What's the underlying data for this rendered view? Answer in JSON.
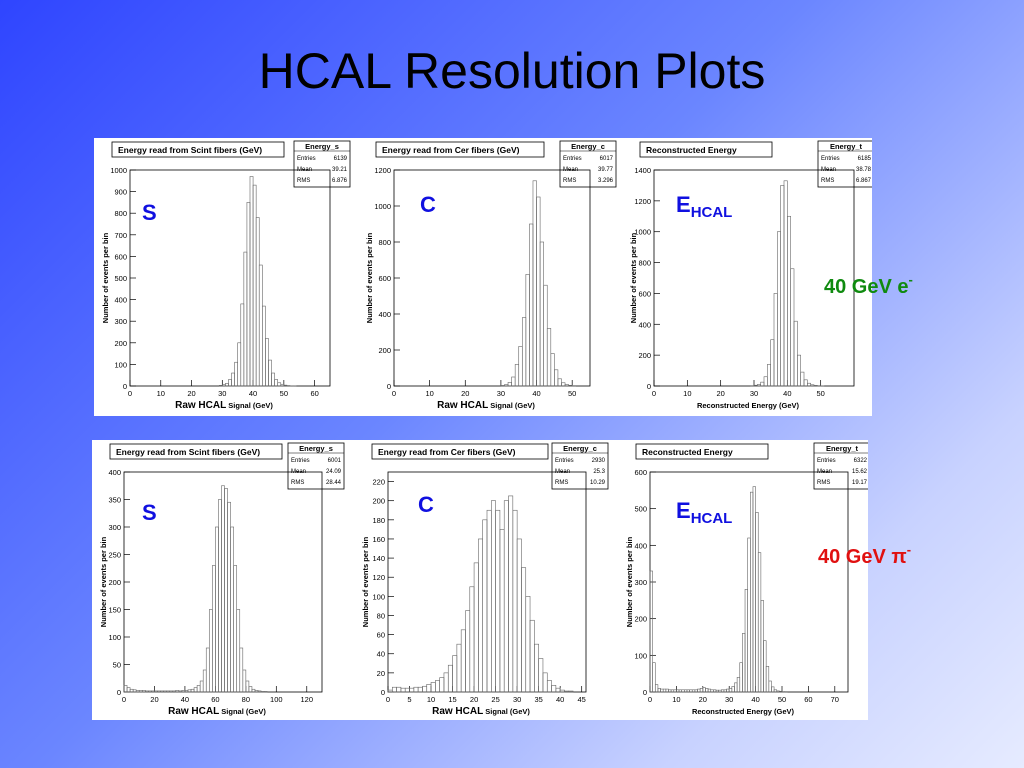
{
  "title": "HCAL Resolution Plots",
  "rows": [
    {
      "label": {
        "text": "40 GeV e",
        "sup": "-"
      },
      "label_color": "#0f8a0f"
    },
    {
      "label": {
        "text": "40 GeV π",
        "sup": "-"
      },
      "label_color": "#e01010"
    }
  ],
  "chart_data": [
    {
      "type": "bar",
      "title": "Energy read from Scint fibers (GeV)",
      "tag": {
        "main": "S",
        "sub": ""
      },
      "stats": {
        "name": "Energy_s",
        "rows": [
          [
            "Entries",
            "6139"
          ],
          [
            "Mean",
            "39.21"
          ],
          [
            "RMS",
            "6.876"
          ]
        ]
      },
      "xlabel": {
        "main": "Raw HCAL",
        "small": " Signal (GeV)"
      },
      "ylabel": "Number of events per bin",
      "xlim": [
        0,
        65
      ],
      "ylim": [
        0,
        1000
      ],
      "xticks": [
        0,
        10,
        20,
        30,
        40,
        50,
        60
      ],
      "yticks": [
        0,
        100,
        200,
        300,
        400,
        500,
        600,
        700,
        800,
        900,
        1000
      ],
      "bins": {
        "x0": 0,
        "width": 1,
        "values": [
          0,
          0,
          0,
          0,
          0,
          0,
          0,
          0,
          0,
          0,
          0,
          0,
          0,
          0,
          0,
          0,
          0,
          0,
          0,
          0,
          0,
          0,
          0,
          0,
          0,
          0,
          0,
          0,
          0,
          3,
          6,
          12,
          30,
          60,
          110,
          200,
          380,
          620,
          850,
          970,
          930,
          780,
          560,
          370,
          220,
          120,
          60,
          30,
          15,
          8,
          4,
          2,
          1,
          1,
          0,
          0,
          0,
          0,
          0,
          0,
          0,
          0,
          0,
          0,
          0
        ]
      }
    },
    {
      "type": "bar",
      "title": "Energy read from Cer fibers (GeV)",
      "tag": {
        "main": "C",
        "sub": ""
      },
      "stats": {
        "name": "Energy_c",
        "rows": [
          [
            "Entries",
            "6017"
          ],
          [
            "Mean",
            "39.77"
          ],
          [
            "RMS",
            "3.296"
          ]
        ]
      },
      "xlabel": {
        "main": "Raw HCAL",
        "small": " Signal (GeV)"
      },
      "ylabel": "Number of events per bin",
      "xlim": [
        0,
        55
      ],
      "ylim": [
        0,
        1200
      ],
      "xticks": [
        0,
        10,
        20,
        30,
        40,
        50
      ],
      "yticks": [
        0,
        200,
        400,
        600,
        800,
        1000,
        1200
      ],
      "bins": {
        "x0": 0,
        "width": 1,
        "values": [
          0,
          0,
          0,
          0,
          0,
          0,
          0,
          0,
          0,
          0,
          0,
          0,
          0,
          0,
          0,
          0,
          0,
          0,
          0,
          0,
          0,
          0,
          0,
          0,
          0,
          0,
          0,
          0,
          0,
          0,
          3,
          8,
          20,
          50,
          120,
          220,
          380,
          620,
          900,
          1140,
          1050,
          800,
          560,
          320,
          180,
          90,
          40,
          18,
          8,
          4,
          2,
          0,
          0,
          0,
          0
        ]
      }
    },
    {
      "type": "bar",
      "title": "Reconstructed Energy",
      "tag": {
        "main": "E",
        "sub": "HCAL"
      },
      "stats": {
        "name": "Energy_t",
        "rows": [
          [
            "Entries",
            "6185"
          ],
          [
            "Mean",
            "38.78"
          ],
          [
            "RMS",
            "6.867"
          ]
        ]
      },
      "xlabel": {
        "main": "",
        "small": "Reconstructed Energy (GeV)"
      },
      "ylabel": "Number of events per bin",
      "xlim": [
        0,
        60
      ],
      "ylim": [
        0,
        1400
      ],
      "xticks": [
        0,
        10,
        20,
        30,
        40,
        50
      ],
      "yticks": [
        0,
        200,
        400,
        600,
        800,
        1000,
        1200,
        1400
      ],
      "bins": {
        "x0": 0,
        "width": 1,
        "values": [
          0,
          0,
          0,
          0,
          0,
          0,
          0,
          0,
          0,
          0,
          0,
          0,
          0,
          0,
          0,
          0,
          0,
          0,
          0,
          0,
          0,
          0,
          0,
          0,
          0,
          0,
          0,
          0,
          0,
          2,
          5,
          10,
          25,
          60,
          140,
          300,
          600,
          1000,
          1300,
          1330,
          1100,
          760,
          420,
          200,
          90,
          40,
          18,
          8,
          4,
          2,
          1,
          0,
          0,
          0,
          0,
          0,
          0,
          0,
          0,
          0
        ]
      }
    },
    {
      "type": "bar",
      "title": "Energy read from Scint fibers (GeV)",
      "tag": {
        "main": "S",
        "sub": ""
      },
      "stats": {
        "name": "Energy_s",
        "rows": [
          [
            "Entries",
            "6001"
          ],
          [
            "Mean",
            "24.09"
          ],
          [
            "RMS",
            "28.44"
          ]
        ]
      },
      "xlabel": {
        "main": "Raw HCAL",
        "small": " Signal (GeV)"
      },
      "ylabel": "Number of events per bin",
      "xlim": [
        0,
        130
      ],
      "ylim": [
        0,
        400
      ],
      "xticks": [
        0,
        20,
        40,
        60,
        80,
        100,
        120
      ],
      "yticks": [
        0,
        50,
        100,
        150,
        200,
        250,
        300,
        350,
        400
      ],
      "bins": {
        "x0": 0,
        "width": 2,
        "values": [
          12,
          8,
          5,
          4,
          3,
          3,
          3,
          2,
          2,
          2,
          2,
          2,
          2,
          2,
          2,
          2,
          2,
          3,
          2,
          3,
          3,
          4,
          5,
          8,
          12,
          20,
          40,
          80,
          150,
          230,
          300,
          350,
          375,
          370,
          345,
          300,
          230,
          150,
          80,
          40,
          20,
          10,
          5,
          3,
          2,
          1,
          1,
          0,
          0,
          0,
          0,
          0,
          0,
          0,
          0,
          0,
          0,
          0,
          0,
          0,
          0,
          0,
          0,
          0,
          0
        ]
      }
    },
    {
      "type": "bar",
      "title": "Energy read from Cer fibers (GeV)",
      "tag": {
        "main": "C",
        "sub": ""
      },
      "stats": {
        "name": "Energy_c",
        "rows": [
          [
            "Entries",
            "2930"
          ],
          [
            "Mean",
            "25.3"
          ],
          [
            "RMS",
            "10.29"
          ]
        ]
      },
      "xlabel": {
        "main": "Raw HCAL",
        "small": " Signal (GeV)"
      },
      "ylabel": "Number of events per bin",
      "xlim": [
        0,
        46
      ],
      "ylim": [
        0,
        230
      ],
      "xticks": [
        0,
        5,
        10,
        15,
        20,
        25,
        30,
        35,
        40,
        45
      ],
      "yticks": [
        0,
        20,
        40,
        60,
        80,
        100,
        120,
        140,
        160,
        180,
        200,
        220
      ],
      "bins": {
        "x0": 0,
        "width": 1,
        "values": [
          2,
          5,
          5,
          4,
          4,
          4,
          5,
          5,
          6,
          8,
          10,
          12,
          15,
          20,
          28,
          38,
          50,
          65,
          85,
          110,
          135,
          160,
          180,
          190,
          200,
          190,
          170,
          200,
          205,
          190,
          160,
          130,
          100,
          75,
          50,
          35,
          20,
          12,
          7,
          4,
          2,
          1,
          1,
          0,
          0,
          0
        ]
      }
    },
    {
      "type": "bar",
      "title": "Reconstructed Energy",
      "tag": {
        "main": "E",
        "sub": "HCAL"
      },
      "stats": {
        "name": "Energy_t",
        "rows": [
          [
            "Entries",
            "6322"
          ],
          [
            "Mean",
            "15.62"
          ],
          [
            "RMS",
            "19.17"
          ]
        ]
      },
      "xlabel": {
        "main": "",
        "small": "Reconstructed Energy (GeV)"
      },
      "ylabel": "Number of events per bin",
      "xlim": [
        0,
        75
      ],
      "ylim": [
        0,
        600
      ],
      "xticks": [
        0,
        10,
        20,
        30,
        40,
        50,
        60,
        70
      ],
      "yticks": [
        0,
        100,
        200,
        300,
        400,
        500,
        600
      ],
      "bins": {
        "x0": 0,
        "width": 1,
        "values": [
          330,
          80,
          20,
          10,
          8,
          8,
          8,
          6,
          6,
          6,
          6,
          6,
          6,
          6,
          6,
          6,
          6,
          6,
          8,
          10,
          12,
          10,
          8,
          6,
          6,
          5,
          5,
          6,
          6,
          8,
          10,
          15,
          25,
          40,
          80,
          160,
          280,
          420,
          545,
          560,
          490,
          380,
          250,
          140,
          70,
          30,
          14,
          6,
          3,
          2,
          1,
          1,
          0,
          0,
          0,
          0,
          0,
          0,
          0,
          0,
          0,
          0,
          0,
          0,
          0,
          0,
          0,
          0,
          0,
          0,
          0,
          0,
          0,
          0,
          0
        ]
      }
    }
  ]
}
